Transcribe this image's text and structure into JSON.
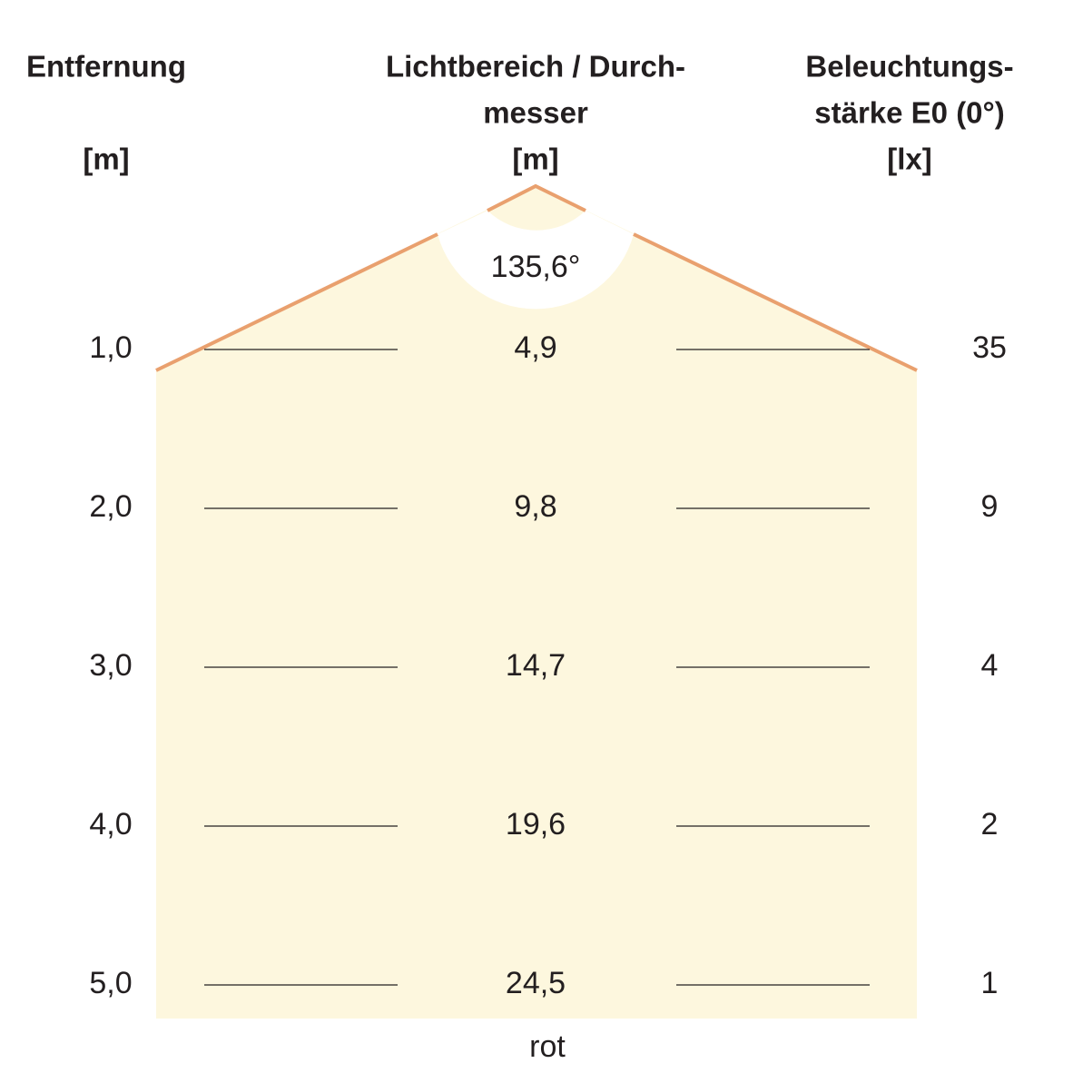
{
  "header": {
    "distance": [
      "Entfernung",
      "[m]"
    ],
    "diameter": [
      "Lichtbereich / Durch-",
      "messer",
      "[m]"
    ],
    "illuminance": [
      "Beleuchtungs-",
      "stärke E0 (0°)",
      "[lx]"
    ]
  },
  "angle": "135,6°",
  "rows": [
    {
      "distance": "1,0",
      "diameter": "4,9",
      "illuminance": "35"
    },
    {
      "distance": "2,0",
      "diameter": "9,8",
      "illuminance": "9"
    },
    {
      "distance": "3,0",
      "diameter": "14,7",
      "illuminance": "4"
    },
    {
      "distance": "4,0",
      "diameter": "19,6",
      "illuminance": "2"
    },
    {
      "distance": "5,0",
      "diameter": "24,5",
      "illuminance": "1"
    }
  ],
  "footer": "rot"
}
